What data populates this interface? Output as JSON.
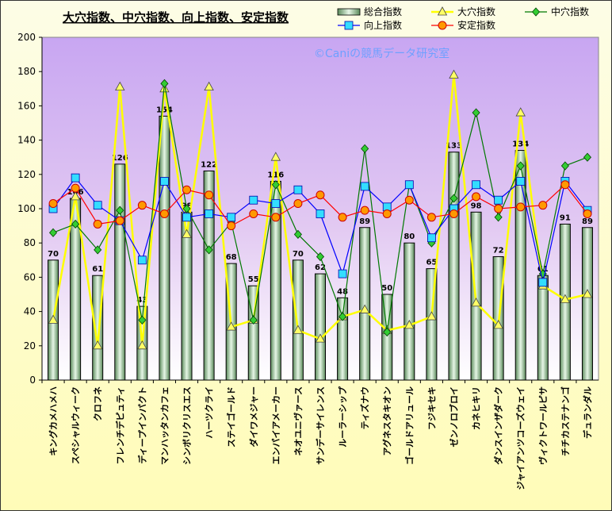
{
  "chart_data": {
    "type": "bar",
    "title": "大穴指数、中穴指数、向上指数、安定指数",
    "watermark": "©Caniの競馬データ研究室",
    "ylim": [
      0,
      200
    ],
    "yticks": [
      0,
      20,
      40,
      60,
      80,
      100,
      120,
      140,
      160,
      180,
      200
    ],
    "grid": false,
    "legend_position": "top-right",
    "categories": [
      "キングカメハメハ",
      "スペシャルウィーク",
      "クロフネ",
      "フレンチデピュティ",
      "ディープインパクト",
      "マンハッタンカフェ",
      "シンボリクリスエス",
      "ハーツクライ",
      "ステイゴールド",
      "ダイワメジャー",
      "エンパイアメーカー",
      "ネオユニヴァース",
      "サンデーサイレンス",
      "ルーラーシップ",
      "ティズナウ",
      "アグネスタキオン",
      "ゴールドアリュール",
      "フジキセキ",
      "ゼンノロブロイ",
      "カネヒキリ",
      "ダンスインザダーク",
      "ジャイアンツコーズウェイ",
      "ヴィクトワールピサ",
      "チチカステナンゴ",
      "デュランダル"
    ],
    "series": [
      {
        "name": "総合指数",
        "kind": "bar",
        "color": "#b8dcb8",
        "values": [
          70,
          106,
          61,
          126,
          43,
          154,
          98,
          122,
          68,
          55,
          116,
          70,
          62,
          48,
          89,
          50,
          80,
          65,
          133,
          98,
          72,
          134,
          61,
          91,
          89
        ]
      },
      {
        "name": "大穴指数",
        "kind": "line",
        "marker": "triangle",
        "color": "#ffff00",
        "values": [
          35,
          107,
          20,
          171,
          20,
          170,
          85,
          171,
          31,
          35,
          130,
          29,
          24,
          37,
          41,
          29,
          32,
          37,
          178,
          45,
          32,
          156,
          55,
          47,
          50
        ]
      },
      {
        "name": "中穴指数",
        "kind": "line",
        "marker": "diamond",
        "color": "#007800",
        "values": [
          86,
          91,
          76,
          99,
          35,
          173,
          100,
          76,
          92,
          35,
          114,
          85,
          72,
          37,
          135,
          28,
          114,
          80,
          106,
          156,
          95,
          125,
          62,
          125,
          130
        ]
      },
      {
        "name": "向上指数",
        "kind": "line",
        "marker": "square",
        "color": "#0000ff",
        "values": [
          100,
          118,
          102,
          93,
          70,
          116,
          95,
          97,
          95,
          105,
          103,
          111,
          97,
          62,
          113,
          101,
          114,
          83,
          100,
          114,
          105,
          116,
          57,
          116,
          99
        ]
      },
      {
        "name": "安定指数",
        "kind": "line",
        "marker": "circle",
        "color": "#ff0000",
        "values": [
          103,
          112,
          91,
          93,
          102,
          97,
          111,
          108,
          90,
          97,
          95,
          103,
          108,
          95,
          99,
          97,
          105,
          95,
          97,
          107,
          100,
          101,
          102,
          114,
          97
        ]
      }
    ]
  }
}
